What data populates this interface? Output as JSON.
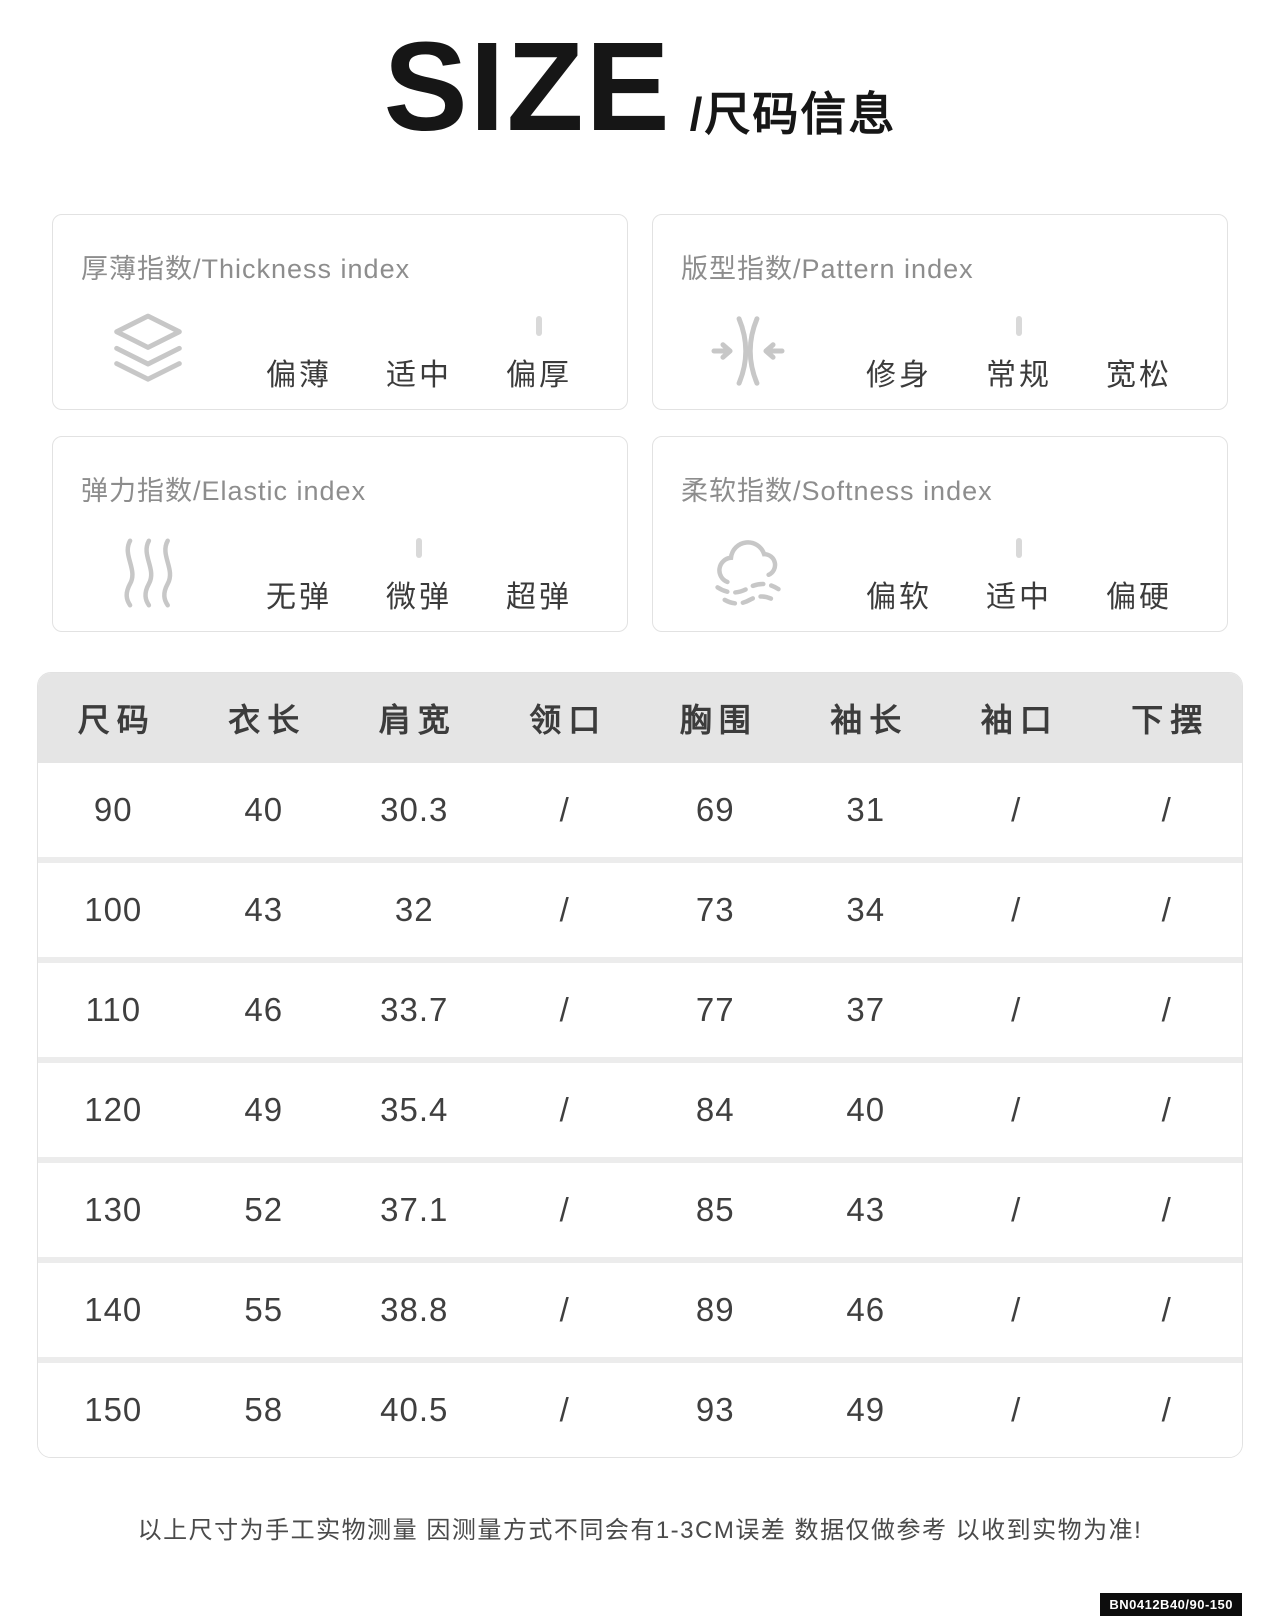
{
  "title": {
    "main": "SIZE",
    "sub": "/尺码信息"
  },
  "index_boxes": [
    {
      "title": "厚薄指数/Thickness index",
      "icon": "layers-icon",
      "options": [
        "偏薄",
        "适中",
        "偏厚"
      ],
      "selected": 2
    },
    {
      "title": "版型指数/Pattern index",
      "icon": "compress-icon",
      "options": [
        "修身",
        "常规",
        "宽松"
      ],
      "selected": 1
    },
    {
      "title": "弹力指数/Elastic index",
      "icon": "waves-icon",
      "options": [
        "无弹",
        "微弹",
        "超弹"
      ],
      "selected": 1
    },
    {
      "title": "柔软指数/Softness index",
      "icon": "cloud-icon",
      "options": [
        "偏软",
        "适中",
        "偏硬"
      ],
      "selected": 1
    }
  ],
  "size_table": {
    "headers": [
      "尺码",
      "衣长",
      "肩宽",
      "领口",
      "胸围",
      "袖长",
      "袖口",
      "下摆"
    ],
    "rows": [
      [
        "90",
        "40",
        "30.3",
        "/",
        "69",
        "31",
        "/",
        "/"
      ],
      [
        "100",
        "43",
        "32",
        "/",
        "73",
        "34",
        "/",
        "/"
      ],
      [
        "110",
        "46",
        "33.7",
        "/",
        "77",
        "37",
        "/",
        "/"
      ],
      [
        "120",
        "49",
        "35.4",
        "/",
        "84",
        "40",
        "/",
        "/"
      ],
      [
        "130",
        "52",
        "37.1",
        "/",
        "85",
        "43",
        "/",
        "/"
      ],
      [
        "140",
        "55",
        "38.8",
        "/",
        "89",
        "46",
        "/",
        "/"
      ],
      [
        "150",
        "58",
        "40.5",
        "/",
        "93",
        "49",
        "/",
        "/"
      ]
    ]
  },
  "footer": {
    "note": "以上尺寸为手工实物测量 因测量方式不同会有1-3CM误差 数据仅做参考 以收到实物为准!",
    "sku": "BN0412B40/90-150"
  },
  "colors": {
    "title_text": "#161616",
    "box_border": "#e2e2e2",
    "box_title_text": "#8d8d8d",
    "option_text": "#3b3b3b",
    "icon_gray": "#c7c7c7",
    "tick_gray": "#d9d9d9",
    "table_header_bg": "#e5e5e5",
    "row_separator": "#ececec",
    "cell_text": "#3f3f3f",
    "badge_bg": "#0d0d0d",
    "badge_text": "#ffffff"
  }
}
